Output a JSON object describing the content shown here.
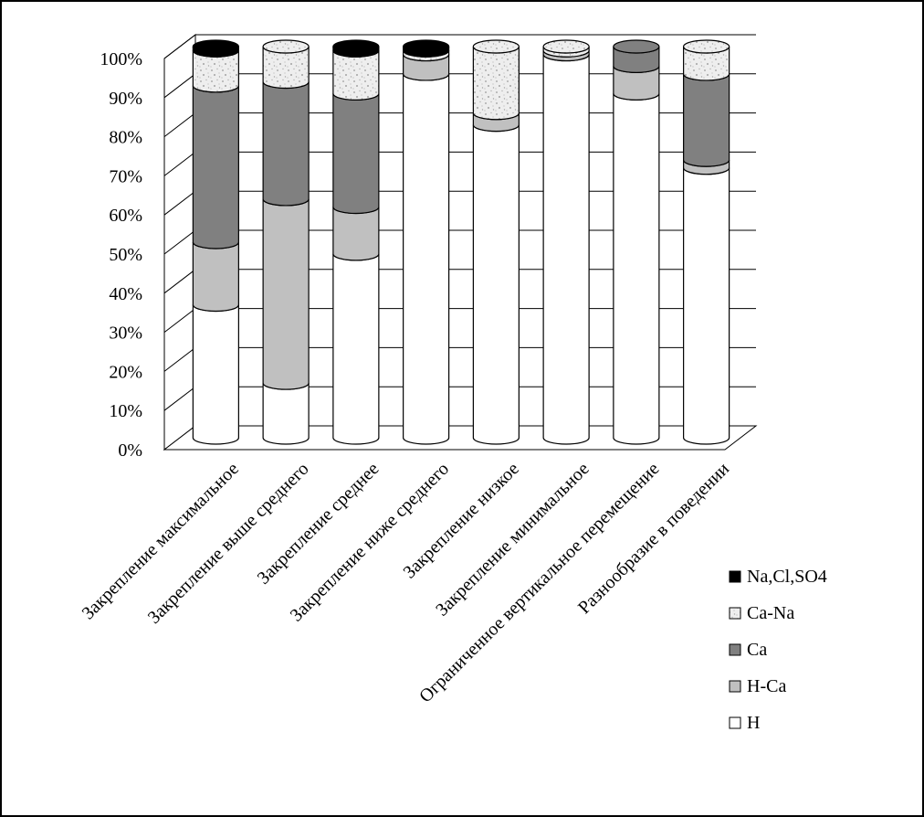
{
  "chart_data": {
    "type": "bar",
    "stacked": true,
    "percent": true,
    "three_d": true,
    "grid": true,
    "legend_position": "right",
    "title": "",
    "xlabel": "",
    "ylabel": "",
    "ylim": [
      0,
      100
    ],
    "y_ticks": [
      "0%",
      "10%",
      "20%",
      "30%",
      "40%",
      "50%",
      "60%",
      "70%",
      "80%",
      "90%",
      "100%"
    ],
    "categories": [
      "Закрепление максимальное",
      "Закрепление выше среднего",
      "Закрепление среднее",
      "Закрепление ниже среднего",
      "Закрепление низкое",
      "Закрепление минимальное",
      "Ограниченное вертикальное перемещение",
      "Разнообразие в поведении"
    ],
    "series": [
      {
        "name": "H",
        "color": "#ffffff",
        "pattern": "solid",
        "values": [
          34,
          14,
          47,
          93,
          80,
          98,
          88,
          69
        ]
      },
      {
        "name": "H-Ca",
        "color": "#c0c0c0",
        "pattern": "solid",
        "values": [
          16,
          47,
          12,
          5,
          3,
          1,
          7,
          2
        ]
      },
      {
        "name": "Ca",
        "color": "#808080",
        "pattern": "solid",
        "values": [
          40,
          30,
          29,
          0,
          0,
          0,
          5,
          22
        ]
      },
      {
        "name": "Ca-Na",
        "color": "#eeeeee",
        "pattern": "speckle",
        "values": [
          9,
          9,
          11,
          1,
          17,
          1,
          0,
          7
        ]
      },
      {
        "name": "Na,Cl,SO4",
        "color": "#000000",
        "pattern": "solid",
        "values": [
          1,
          0,
          1,
          1,
          0,
          0,
          0,
          0
        ]
      }
    ],
    "legend_order": [
      "Na,Cl,SO4",
      "Ca-Na",
      "Ca",
      "H-Ca",
      "H"
    ]
  }
}
